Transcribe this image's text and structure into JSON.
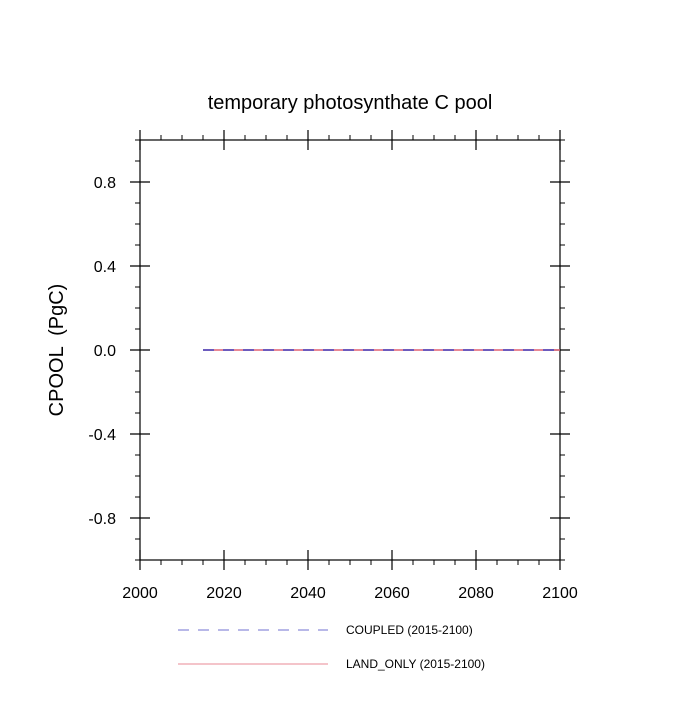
{
  "chart_data": {
    "type": "line",
    "title": "temporary photosynthate C pool",
    "xlabel": "",
    "ylabel": "CPOOL  (PgC)",
    "xlim": [
      2000,
      2100
    ],
    "ylim": [
      -1.0,
      1.0
    ],
    "x_major_ticks": [
      2000,
      2020,
      2040,
      2060,
      2080,
      2100
    ],
    "x_tick_labels": [
      "2000",
      "2020",
      "2040",
      "2060",
      "2080",
      "2100"
    ],
    "y_major_ticks": [
      0.8,
      0.4,
      0.0,
      -0.4,
      -0.8
    ],
    "y_tick_labels": [
      "0.8",
      "0.4",
      "0.0",
      "-0.4",
      "-0.8"
    ],
    "grid": false,
    "legend_position": "bottom",
    "series": [
      {
        "name": "COUPLED (2015-2100)",
        "color": "#4040c0",
        "style": "dashed",
        "x": [
          2015,
          2100
        ],
        "values": [
          0.0,
          0.0
        ]
      },
      {
        "name": "LAND_ONLY (2015-2100)",
        "color": "#e06070",
        "style": "solid",
        "x": [
          2015,
          2100
        ],
        "values": [
          0.0,
          0.0
        ]
      }
    ]
  }
}
